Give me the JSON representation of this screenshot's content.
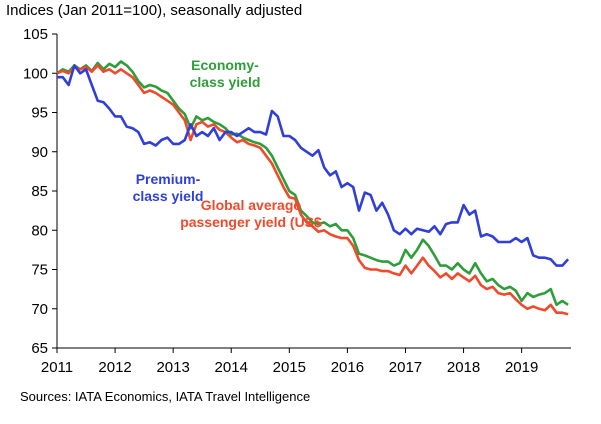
{
  "units_label": "Indices (Jan 2011=100), seasonally adjusted",
  "source": "Sources: IATA Economics, IATA Travel Intelligence",
  "colors": {
    "economy": "#2e9e3a",
    "premium": "#2f3fd8",
    "global": "#ef4a2b"
  },
  "chart_data": {
    "type": "line",
    "xlim": [
      2011.0,
      2019.85
    ],
    "ylim": [
      65,
      105
    ],
    "grid": false,
    "x_ticks": [
      2011,
      2012,
      2013,
      2014,
      2015,
      2016,
      2017,
      2018,
      2019
    ],
    "y_ticks": [
      65,
      70,
      75,
      80,
      85,
      90,
      95,
      100,
      105
    ],
    "annotations": [
      {
        "series": "economy",
        "lines": [
          "Economy-",
          "class yield"
        ]
      },
      {
        "series": "premium",
        "lines": [
          "Premium-",
          "class yield"
        ]
      },
      {
        "series": "global",
        "lines": [
          "Global average",
          "passenger yield (US$"
        ]
      }
    ],
    "series": [
      {
        "key": "economy",
        "x": [
          2011.0,
          2011.1,
          2011.2,
          2011.3,
          2011.4,
          2011.5,
          2011.6,
          2011.7,
          2011.8,
          2011.9,
          2012.0,
          2012.1,
          2012.2,
          2012.3,
          2012.4,
          2012.5,
          2012.6,
          2012.7,
          2012.8,
          2012.9,
          2013.0,
          2013.1,
          2013.2,
          2013.3,
          2013.4,
          2013.5,
          2013.6,
          2013.7,
          2013.8,
          2013.9,
          2014.0,
          2014.1,
          2014.2,
          2014.3,
          2014.4,
          2014.5,
          2014.6,
          2014.7,
          2014.8,
          2014.9,
          2015.0,
          2015.1,
          2015.2,
          2015.3,
          2015.4,
          2015.5,
          2015.6,
          2015.7,
          2015.8,
          2015.9,
          2016.0,
          2016.1,
          2016.2,
          2016.3,
          2016.4,
          2016.5,
          2016.6,
          2016.7,
          2016.8,
          2016.9,
          2017.0,
          2017.1,
          2017.2,
          2017.3,
          2017.4,
          2017.5,
          2017.6,
          2017.7,
          2017.8,
          2017.9,
          2018.0,
          2018.1,
          2018.2,
          2018.3,
          2018.4,
          2018.5,
          2018.6,
          2018.7,
          2018.8,
          2018.9,
          2019.0,
          2019.1,
          2019.2,
          2019.3,
          2019.4,
          2019.5,
          2019.6,
          2019.7,
          2019.8
        ],
        "y": [
          100,
          100.5,
          100.2,
          101,
          100.5,
          101,
          100.3,
          101.3,
          100.5,
          101.2,
          100.8,
          101.5,
          101,
          100.2,
          99,
          98.2,
          98.5,
          98.3,
          97.8,
          97.5,
          96.5,
          95.5,
          94.8,
          93,
          94.5,
          94,
          94.3,
          93.8,
          93.5,
          93,
          92.2,
          92.3,
          91.8,
          91.5,
          91.2,
          91,
          90.5,
          89.5,
          88,
          86.5,
          85,
          84.5,
          82.5,
          81.8,
          81,
          80.8,
          81,
          80.5,
          80.8,
          80,
          80,
          79,
          77,
          76.8,
          76.5,
          76.2,
          76,
          76,
          75.5,
          75.8,
          77.5,
          76.5,
          77.5,
          78.8,
          78,
          76.8,
          75.5,
          75.5,
          75,
          75.8,
          75,
          74.5,
          75.8,
          74.5,
          73.5,
          73.8,
          73,
          72.5,
          72.8,
          72.3,
          71,
          72,
          71.5,
          71.8,
          72,
          72.5,
          70.5,
          71,
          70.5
        ]
      },
      {
        "key": "global",
        "x": [
          2011.0,
          2011.1,
          2011.2,
          2011.3,
          2011.4,
          2011.5,
          2011.6,
          2011.7,
          2011.8,
          2011.9,
          2012.0,
          2012.1,
          2012.2,
          2012.3,
          2012.4,
          2012.5,
          2012.6,
          2012.7,
          2012.8,
          2012.9,
          2013.0,
          2013.1,
          2013.2,
          2013.3,
          2013.4,
          2013.5,
          2013.6,
          2013.7,
          2013.8,
          2013.9,
          2014.0,
          2014.1,
          2014.2,
          2014.3,
          2014.4,
          2014.5,
          2014.6,
          2014.7,
          2014.8,
          2014.9,
          2015.0,
          2015.1,
          2015.2,
          2015.3,
          2015.4,
          2015.5,
          2015.6,
          2015.7,
          2015.8,
          2015.9,
          2016.0,
          2016.1,
          2016.2,
          2016.3,
          2016.4,
          2016.5,
          2016.6,
          2016.7,
          2016.8,
          2016.9,
          2017.0,
          2017.1,
          2017.2,
          2017.3,
          2017.4,
          2017.5,
          2017.6,
          2017.7,
          2017.8,
          2017.9,
          2018.0,
          2018.1,
          2018.2,
          2018.3,
          2018.4,
          2018.5,
          2018.6,
          2018.7,
          2018.8,
          2018.9,
          2019.0,
          2019.1,
          2019.2,
          2019.3,
          2019.4,
          2019.5,
          2019.6,
          2019.7,
          2019.8
        ],
        "y": [
          100,
          100.3,
          100,
          100.8,
          100.5,
          100.8,
          100.2,
          101,
          100.2,
          100.5,
          100,
          100.5,
          100,
          99.5,
          98.5,
          97.5,
          97.8,
          97.5,
          97,
          96.5,
          96,
          95,
          94,
          91.5,
          93.5,
          93.8,
          93.2,
          93.5,
          92.8,
          92.5,
          91.8,
          91.2,
          91.5,
          91,
          90.8,
          90.5,
          89.5,
          88.5,
          87,
          85.5,
          84.2,
          84,
          82,
          81,
          80.5,
          79.8,
          80,
          79.5,
          79.2,
          79,
          79,
          78,
          76.2,
          75.2,
          75,
          75,
          74.8,
          74.8,
          74.5,
          74.3,
          75.5,
          74.5,
          75.5,
          76.5,
          75.5,
          74.8,
          74,
          74.5,
          73.8,
          74.5,
          74,
          73.5,
          74.2,
          73,
          72.5,
          72.8,
          72,
          71.8,
          72,
          71.2,
          70.5,
          70,
          70.3,
          70,
          69.8,
          70.5,
          69.5,
          69.5,
          69.3
        ]
      },
      {
        "key": "premium",
        "x": [
          2011.0,
          2011.1,
          2011.2,
          2011.3,
          2011.4,
          2011.5,
          2011.6,
          2011.7,
          2011.8,
          2011.9,
          2012.0,
          2012.1,
          2012.2,
          2012.3,
          2012.4,
          2012.5,
          2012.6,
          2012.7,
          2012.8,
          2012.9,
          2013.0,
          2013.1,
          2013.2,
          2013.3,
          2013.4,
          2013.5,
          2013.6,
          2013.7,
          2013.8,
          2013.9,
          2014.0,
          2014.1,
          2014.2,
          2014.3,
          2014.4,
          2014.5,
          2014.6,
          2014.7,
          2014.8,
          2014.9,
          2015.0,
          2015.1,
          2015.2,
          2015.3,
          2015.4,
          2015.5,
          2015.6,
          2015.7,
          2015.8,
          2015.9,
          2016.0,
          2016.1,
          2016.2,
          2016.3,
          2016.4,
          2016.5,
          2016.6,
          2016.7,
          2016.8,
          2016.9,
          2017.0,
          2017.1,
          2017.2,
          2017.3,
          2017.4,
          2017.5,
          2017.6,
          2017.7,
          2017.8,
          2017.9,
          2018.0,
          2018.1,
          2018.2,
          2018.3,
          2018.4,
          2018.5,
          2018.6,
          2018.7,
          2018.8,
          2018.9,
          2019.0,
          2019.1,
          2019.2,
          2019.3,
          2019.4,
          2019.5,
          2019.6,
          2019.7,
          2019.8
        ],
        "y": [
          99.5,
          99.5,
          98.5,
          101,
          100,
          100.5,
          98.5,
          96.5,
          96.3,
          95.5,
          94.5,
          94.5,
          93.2,
          93,
          92.5,
          91,
          91.2,
          90.8,
          91.5,
          91.8,
          91,
          91,
          91.5,
          93.5,
          92,
          92.5,
          92,
          93,
          91.5,
          92.5,
          92.5,
          92,
          92.5,
          93,
          92.5,
          92.5,
          92.2,
          95.2,
          94.5,
          92,
          92,
          91.5,
          90.5,
          90,
          89.5,
          90.2,
          88,
          87,
          87.5,
          85.5,
          86,
          85.5,
          82.5,
          84.8,
          84.5,
          82.5,
          83.5,
          82,
          80,
          79.5,
          80.2,
          79.5,
          80.2,
          80,
          79.8,
          80.5,
          79.5,
          80.8,
          81,
          81,
          83.2,
          82,
          82.5,
          79.2,
          79.5,
          79.2,
          78.5,
          78.5,
          78.5,
          79,
          78.5,
          79,
          76.8,
          76.5,
          76.5,
          76.3,
          75.5,
          75.5,
          76.3
        ]
      }
    ]
  }
}
